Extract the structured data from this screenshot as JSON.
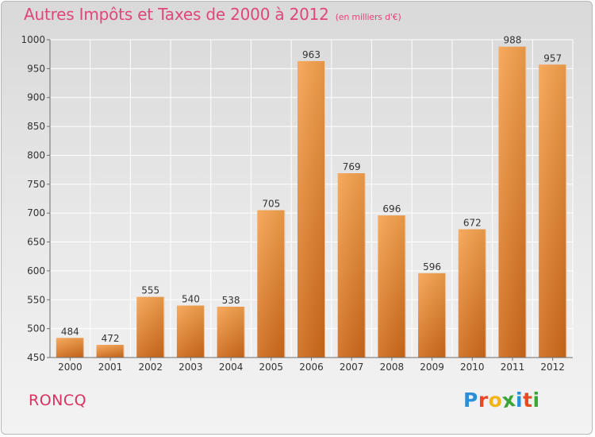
{
  "header": {
    "title": "Autres Impôts et Taxes de 2000 à 2012",
    "subtitle": "(en milliers d'€)"
  },
  "footer": {
    "commune": "RONCQ",
    "logo_letters": [
      "P",
      "r",
      "o",
      "x",
      "i",
      "t",
      "i"
    ],
    "logo_colors": [
      "#2a8ed8",
      "#e84a27",
      "#f3b418",
      "#3aa637",
      "#2a8ed8",
      "#e84a27",
      "#3aa637"
    ]
  },
  "chart_data": {
    "type": "bar",
    "title": "Autres Impôts et Taxes de 2000 à 2012",
    "subtitle": "(en milliers d'€)",
    "xlabel": "",
    "ylabel": "",
    "categories": [
      "2000",
      "2001",
      "2002",
      "2003",
      "2004",
      "2005",
      "2006",
      "2007",
      "2008",
      "2009",
      "2010",
      "2011",
      "2012"
    ],
    "values": [
      484,
      472,
      555,
      540,
      538,
      705,
      963,
      769,
      696,
      596,
      672,
      988,
      957
    ],
    "ylim": [
      450,
      1000
    ],
    "yticks": [
      450,
      500,
      550,
      600,
      650,
      700,
      750,
      800,
      850,
      900,
      950,
      1000
    ],
    "grid": true,
    "colors": {
      "bar_light": "#f7a24e",
      "bar_dark": "#cf6a1a",
      "grid": "#ffffff",
      "axis": "#6e6e6e"
    }
  }
}
